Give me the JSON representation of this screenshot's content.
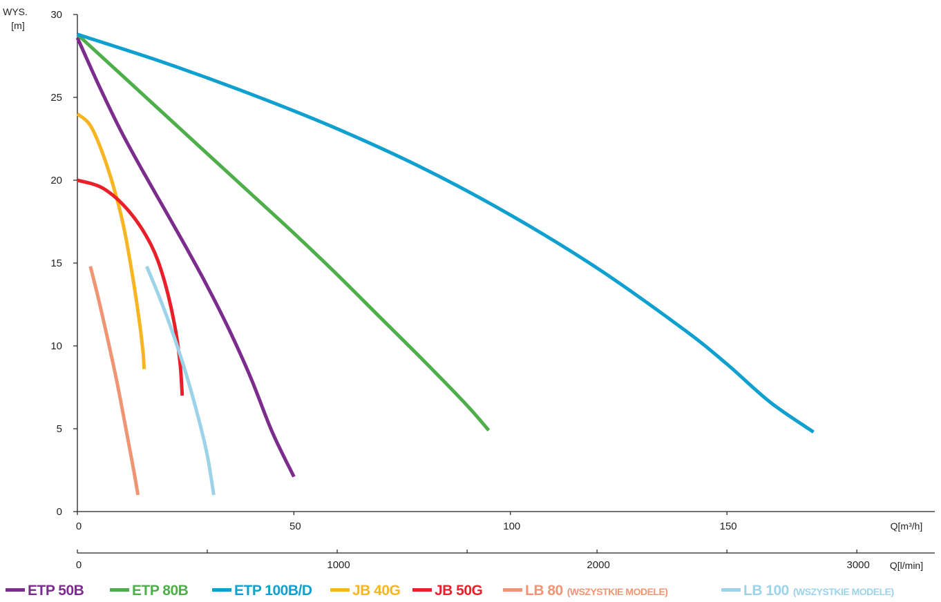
{
  "chart_data": {
    "type": "line",
    "ylabel_lines": [
      "WYS.",
      "[m]"
    ],
    "x_label": "Q[m³/h]",
    "x2_label": "Q[l/min]",
    "y_ticks": [
      0,
      5,
      10,
      15,
      20,
      25,
      30
    ],
    "x_ticks": [
      0,
      50,
      100,
      150
    ],
    "x2_ticks": [
      0,
      1000,
      2000,
      3000
    ],
    "x_range": [
      0,
      198
    ],
    "x2_range": [
      0,
      3300
    ],
    "y_range": [
      0,
      30
    ],
    "series": [
      {
        "key": "etp50b",
        "name": "ETP 50B",
        "note": "",
        "color": "#7b2c8d",
        "points": [
          [
            0,
            28.6
          ],
          [
            5,
            25.7
          ],
          [
            10,
            23
          ],
          [
            15,
            20.6
          ],
          [
            20,
            18.3
          ],
          [
            25,
            16
          ],
          [
            30,
            13.6
          ],
          [
            35,
            11
          ],
          [
            40,
            8.1
          ],
          [
            45,
            4.8
          ],
          [
            50,
            2.1
          ]
        ]
      },
      {
        "key": "etp80b",
        "name": "ETP 80B",
        "note": "",
        "color": "#4eae4a",
        "points": [
          [
            0,
            28.8
          ],
          [
            10,
            26.4
          ],
          [
            20,
            24
          ],
          [
            30,
            21.6
          ],
          [
            40,
            19.2
          ],
          [
            50,
            16.8
          ],
          [
            60,
            14.3
          ],
          [
            70,
            11.7
          ],
          [
            80,
            9.1
          ],
          [
            90,
            6.4
          ],
          [
            95,
            4.9
          ]
        ]
      },
      {
        "key": "etp100bd",
        "name": "ETP 100B/D",
        "note": "",
        "color": "#0fa0cf",
        "points": [
          [
            0,
            28.8
          ],
          [
            20,
            27.1
          ],
          [
            40,
            25.2
          ],
          [
            60,
            23.1
          ],
          [
            80,
            20.7
          ],
          [
            100,
            17.9
          ],
          [
            120,
            14.7
          ],
          [
            140,
            11
          ],
          [
            150,
            8.9
          ],
          [
            160,
            6.6
          ],
          [
            170,
            4.8
          ]
        ]
      },
      {
        "key": "jb40g",
        "name": "JB 40G",
        "note": "",
        "color": "#f8b522",
        "points": [
          [
            0,
            24
          ],
          [
            3,
            23.3
          ],
          [
            6,
            21.5
          ],
          [
            9,
            19
          ],
          [
            11,
            16.8
          ],
          [
            13,
            13.8
          ],
          [
            14.4,
            11.3
          ],
          [
            15.2,
            9.5
          ],
          [
            15.4,
            8.6
          ]
        ]
      },
      {
        "key": "jb50g",
        "name": "JB 50G",
        "note": "",
        "color": "#e8202a",
        "points": [
          [
            0,
            20
          ],
          [
            6,
            19.5
          ],
          [
            12,
            18.1
          ],
          [
            17,
            16.1
          ],
          [
            20,
            14
          ],
          [
            22.5,
            11.2
          ],
          [
            23.7,
            9
          ],
          [
            24.1,
            7.5
          ],
          [
            24.2,
            7
          ]
        ]
      },
      {
        "key": "lb80",
        "name": "LB 80",
        "note": "(WSZYSTKIE MODELE)",
        "color": "#f09574",
        "points": [
          [
            3,
            14.8
          ],
          [
            5,
            12.7
          ],
          [
            7,
            10.4
          ],
          [
            9,
            8
          ],
          [
            11,
            5.3
          ],
          [
            13,
            2.5
          ],
          [
            14,
            1
          ]
        ]
      },
      {
        "key": "lb100",
        "name": "LB 100",
        "note": "(WSZYSTKIE MODELE)",
        "color": "#9cd3e8",
        "points": [
          [
            16,
            14.8
          ],
          [
            19,
            12.9
          ],
          [
            22,
            10.8
          ],
          [
            25,
            8.4
          ],
          [
            28,
            5.6
          ],
          [
            30,
            3.4
          ],
          [
            31.5,
            1
          ]
        ]
      }
    ]
  }
}
